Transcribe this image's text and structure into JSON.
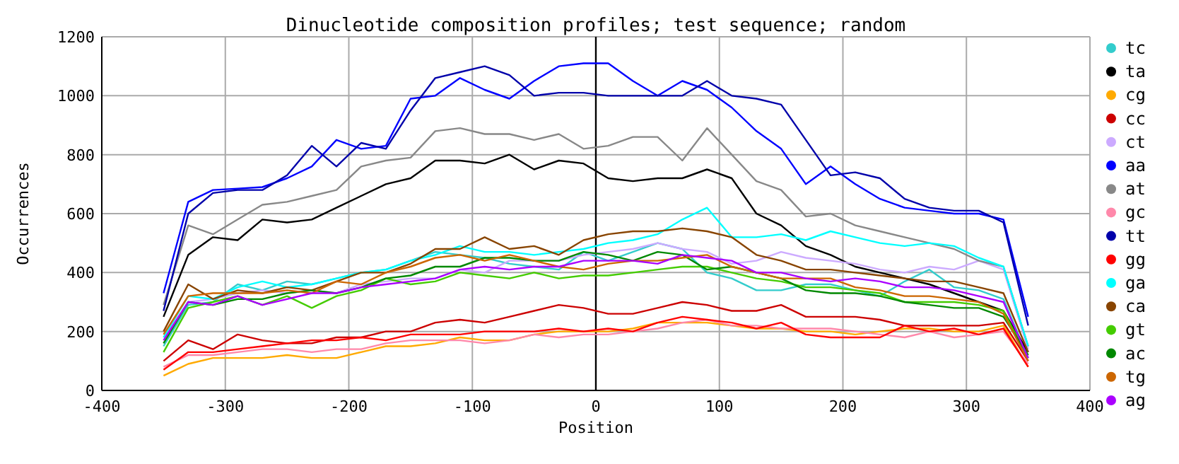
{
  "chart_data": {
    "type": "line",
    "title": "Dinucleotide composition profiles; test sequence; random",
    "xlabel": "Position",
    "ylabel": "Occurrences",
    "x": [
      -350,
      -330,
      -310,
      -290,
      -270,
      -250,
      -230,
      -210,
      -190,
      -170,
      -150,
      -130,
      -110,
      -90,
      -70,
      -50,
      -30,
      -10,
      10,
      30,
      50,
      70,
      90,
      110,
      130,
      150,
      170,
      190,
      210,
      230,
      250,
      270,
      290,
      310,
      330,
      350
    ],
    "xlim": [
      -400,
      400
    ],
    "xticks": [
      -400,
      -300,
      -200,
      -100,
      0,
      100,
      200,
      300,
      400
    ],
    "ylim": [
      0,
      1200
    ],
    "yticks": [
      0,
      200,
      400,
      600,
      800,
      1000,
      1200
    ],
    "grid": true,
    "legend": "right",
    "marker": "none",
    "line_style": "solid",
    "ref_lines": [
      {
        "axis": "x",
        "value": 0,
        "color": "#000000"
      }
    ],
    "series": [
      {
        "name": "tc",
        "color": "#33cccc",
        "values": [
          150,
          290,
          300,
          360,
          340,
          370,
          360,
          380,
          400,
          410,
          440,
          470,
          460,
          450,
          430,
          420,
          410,
          470,
          440,
          470,
          500,
          480,
          400,
          380,
          340,
          340,
          360,
          360,
          340,
          320,
          370,
          410,
          350,
          340,
          310,
          110
        ]
      },
      {
        "name": "ta",
        "color": "#000000",
        "values": [
          250,
          460,
          520,
          510,
          580,
          570,
          580,
          620,
          660,
          700,
          720,
          780,
          780,
          770,
          800,
          750,
          780,
          770,
          720,
          710,
          720,
          720,
          750,
          720,
          600,
          560,
          490,
          460,
          420,
          400,
          380,
          360,
          330,
          300,
          270,
          130
        ]
      },
      {
        "name": "cg",
        "color": "#ffaa00",
        "values": [
          50,
          90,
          110,
          110,
          110,
          120,
          110,
          110,
          130,
          150,
          150,
          160,
          180,
          170,
          170,
          190,
          200,
          200,
          200,
          210,
          230,
          230,
          230,
          220,
          210,
          210,
          200,
          200,
          190,
          200,
          210,
          210,
          200,
          200,
          220,
          80
        ]
      },
      {
        "name": "cc",
        "color": "#cc0000",
        "values": [
          100,
          170,
          140,
          190,
          170,
          160,
          160,
          180,
          180,
          200,
          200,
          230,
          240,
          230,
          250,
          270,
          290,
          280,
          260,
          260,
          280,
          300,
          290,
          270,
          270,
          290,
          250,
          250,
          250,
          240,
          220,
          220,
          220,
          220,
          230,
          100
        ]
      },
      {
        "name": "ct",
        "color": "#ccaaff",
        "values": [
          180,
          300,
          310,
          330,
          340,
          330,
          340,
          330,
          360,
          370,
          380,
          380,
          410,
          400,
          440,
          440,
          440,
          460,
          470,
          480,
          500,
          480,
          470,
          430,
          440,
          470,
          450,
          440,
          430,
          410,
          400,
          420,
          410,
          440,
          410,
          140
        ]
      },
      {
        "name": "aa",
        "color": "#0000ff",
        "values": [
          330,
          640,
          680,
          685,
          690,
          720,
          760,
          850,
          820,
          830,
          990,
          1000,
          1060,
          1020,
          990,
          1050,
          1100,
          1110,
          1110,
          1050,
          1000,
          1050,
          1020,
          960,
          880,
          820,
          700,
          760,
          700,
          650,
          620,
          610,
          600,
          600,
          580,
          250
        ]
      },
      {
        "name": "at",
        "color": "#888888",
        "values": [
          290,
          560,
          530,
          580,
          630,
          640,
          660,
          680,
          760,
          780,
          790,
          880,
          890,
          870,
          870,
          850,
          870,
          820,
          830,
          860,
          860,
          780,
          890,
          800,
          710,
          680,
          590,
          600,
          560,
          540,
          520,
          500,
          480,
          440,
          420,
          150
        ]
      },
      {
        "name": "gc",
        "color": "#ff88aa",
        "values": [
          80,
          120,
          120,
          130,
          140,
          140,
          130,
          140,
          140,
          160,
          170,
          170,
          170,
          160,
          170,
          190,
          180,
          190,
          190,
          200,
          210,
          230,
          240,
          220,
          220,
          210,
          210,
          210,
          200,
          190,
          180,
          200,
          180,
          190,
          200,
          90
        ]
      },
      {
        "name": "tt",
        "color": "#0000aa",
        "values": [
          270,
          600,
          670,
          680,
          680,
          730,
          830,
          760,
          840,
          820,
          950,
          1060,
          1080,
          1100,
          1070,
          1000,
          1010,
          1010,
          1000,
          1000,
          1000,
          1000,
          1050,
          1000,
          990,
          970,
          850,
          730,
          740,
          720,
          650,
          620,
          610,
          610,
          570,
          220
        ]
      },
      {
        "name": "gg",
        "color": "#ff0000",
        "values": [
          70,
          130,
          130,
          140,
          150,
          160,
          170,
          170,
          180,
          170,
          190,
          190,
          190,
          200,
          200,
          200,
          210,
          200,
          210,
          200,
          230,
          250,
          240,
          230,
          210,
          230,
          190,
          180,
          180,
          180,
          220,
          200,
          210,
          190,
          210,
          80
        ]
      },
      {
        "name": "ga",
        "color": "#00ffff",
        "values": [
          180,
          320,
          310,
          350,
          370,
          350,
          360,
          380,
          400,
          410,
          440,
          460,
          490,
          470,
          470,
          460,
          470,
          480,
          500,
          510,
          530,
          580,
          620,
          520,
          520,
          530,
          510,
          540,
          520,
          500,
          490,
          500,
          490,
          450,
          420,
          150
        ]
      },
      {
        "name": "ca",
        "color": "#884400",
        "values": [
          200,
          360,
          310,
          340,
          330,
          350,
          340,
          370,
          400,
          400,
          430,
          480,
          480,
          520,
          480,
          490,
          460,
          510,
          530,
          540,
          540,
          550,
          540,
          520,
          460,
          440,
          410,
          410,
          400,
          390,
          380,
          370,
          370,
          350,
          330,
          130
        ]
      },
      {
        "name": "gt",
        "color": "#44cc00",
        "values": [
          130,
          280,
          300,
          320,
          290,
          320,
          280,
          320,
          340,
          380,
          360,
          370,
          400,
          390,
          380,
          400,
          380,
          390,
          390,
          400,
          410,
          420,
          420,
          400,
          380,
          370,
          350,
          350,
          340,
          330,
          300,
          300,
          300,
          290,
          270,
          110
        ]
      },
      {
        "name": "ac",
        "color": "#008800",
        "values": [
          160,
          300,
          290,
          310,
          310,
          330,
          340,
          330,
          350,
          380,
          390,
          420,
          420,
          450,
          450,
          440,
          440,
          470,
          460,
          440,
          470,
          460,
          410,
          420,
          400,
          380,
          340,
          330,
          330,
          320,
          300,
          290,
          280,
          280,
          250,
          120
        ]
      },
      {
        "name": "tg",
        "color": "#cc6600",
        "values": [
          190,
          320,
          330,
          330,
          330,
          340,
          330,
          370,
          360,
          400,
          420,
          450,
          460,
          440,
          460,
          440,
          420,
          410,
          430,
          440,
          440,
          450,
          460,
          420,
          400,
          380,
          380,
          380,
          350,
          340,
          320,
          320,
          310,
          300,
          260,
          100
        ]
      },
      {
        "name": "ag",
        "color": "#aa00ff",
        "values": [
          170,
          300,
          290,
          320,
          290,
          310,
          330,
          330,
          350,
          360,
          370,
          380,
          410,
          420,
          410,
          420,
          420,
          440,
          440,
          440,
          430,
          460,
          450,
          440,
          400,
          400,
          380,
          370,
          380,
          370,
          350,
          350,
          340,
          320,
          300,
          110
        ]
      }
    ]
  }
}
